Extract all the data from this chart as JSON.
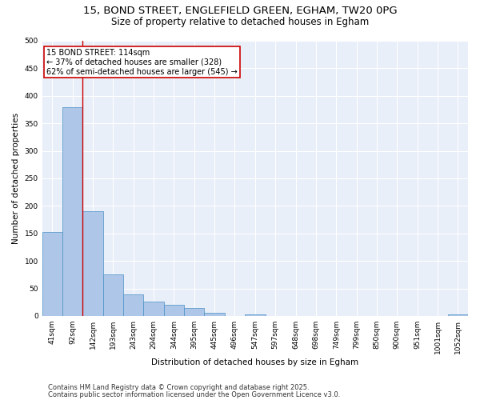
{
  "title_line1": "15, BOND STREET, ENGLEFIELD GREEN, EGHAM, TW20 0PG",
  "title_line2": "Size of property relative to detached houses in Egham",
  "xlabel": "Distribution of detached houses by size in Egham",
  "ylabel": "Number of detached properties",
  "bar_labels": [
    "41sqm",
    "92sqm",
    "142sqm",
    "193sqm",
    "243sqm",
    "294sqm",
    "344sqm",
    "395sqm",
    "445sqm",
    "496sqm",
    "547sqm",
    "597sqm",
    "648sqm",
    "698sqm",
    "749sqm",
    "799sqm",
    "850sqm",
    "900sqm",
    "951sqm",
    "1001sqm",
    "1052sqm"
  ],
  "bar_values": [
    152,
    380,
    191,
    76,
    39,
    26,
    20,
    15,
    6,
    0,
    3,
    0,
    0,
    0,
    0,
    0,
    0,
    0,
    0,
    0,
    3
  ],
  "bar_color": "#aec6e8",
  "bar_edge_color": "#4a90c4",
  "vline_color": "#cc0000",
  "annotation_text": "15 BOND STREET: 114sqm\n← 37% of detached houses are smaller (328)\n62% of semi-detached houses are larger (545) →",
  "annotation_box_color": "#cc0000",
  "ylim": [
    0,
    500
  ],
  "yticks": [
    0,
    50,
    100,
    150,
    200,
    250,
    300,
    350,
    400,
    450,
    500
  ],
  "bg_color": "#e8eff8",
  "footer_line1": "Contains HM Land Registry data © Crown copyright and database right 2025.",
  "footer_line2": "Contains public sector information licensed under the Open Government Licence v3.0.",
  "title_fontsize": 9.5,
  "subtitle_fontsize": 8.5,
  "axis_label_fontsize": 7.5,
  "tick_fontsize": 6.5,
  "annotation_fontsize": 7,
  "footer_fontsize": 6
}
